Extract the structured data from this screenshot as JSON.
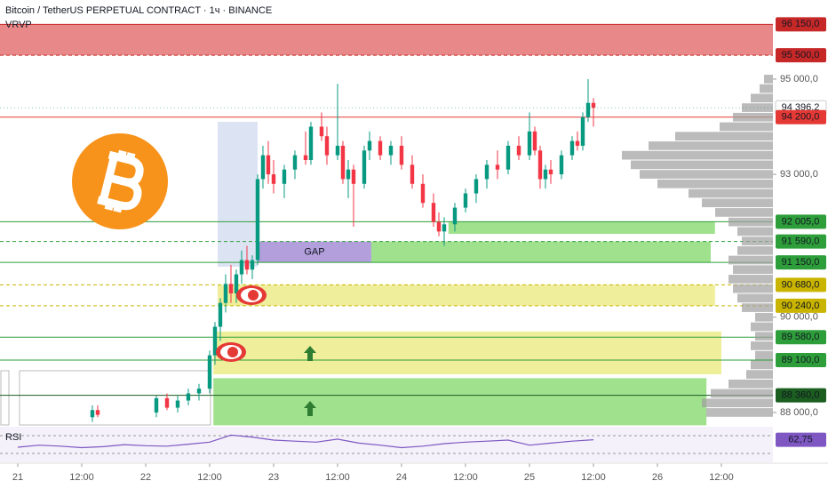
{
  "chart_data": {
    "type": "candlestick",
    "title": "Bitcoin / TetherUS PERPETUAL CONTRACT · 1ч · BINANCE",
    "indicator": "VRVP",
    "xlim": [
      -3.33,
      141.67
    ],
    "ylim": [
      87700,
      96660
    ],
    "xticks": [
      {
        "value": 0,
        "label": "21"
      },
      {
        "value": 12,
        "label": "12:00"
      },
      {
        "value": 24,
        "label": "22"
      },
      {
        "value": 36,
        "label": "12:00"
      },
      {
        "value": 48,
        "label": "23"
      },
      {
        "value": 60,
        "label": "12:00"
      },
      {
        "value": 72,
        "label": "24"
      },
      {
        "value": 84,
        "label": "12:00"
      },
      {
        "value": 96,
        "label": "25"
      },
      {
        "value": 108,
        "label": "12:00"
      },
      {
        "value": 120,
        "label": "26"
      },
      {
        "value": 132,
        "label": "12:00"
      }
    ],
    "yticks": [
      {
        "value": 95000,
        "label": "95 000,0"
      },
      {
        "value": 93000,
        "label": "93 000,0"
      },
      {
        "value": 90000,
        "label": "90 000,0"
      },
      {
        "value": 88000,
        "label": "88 000,0"
      }
    ],
    "up_color": "#089981",
    "down_color": "#f23645",
    "candles": {
      "x": [
        14,
        15,
        26,
        28,
        30,
        32,
        34,
        36,
        37,
        38,
        39,
        40,
        41,
        42,
        43,
        44,
        45,
        46,
        47,
        48,
        50,
        52,
        54,
        55,
        57,
        58,
        60,
        61,
        62,
        63,
        65,
        66,
        68,
        70,
        72,
        74,
        76,
        78,
        79,
        80,
        82,
        84,
        86,
        88,
        90,
        92,
        94,
        96,
        97,
        98,
        99,
        100,
        102,
        104,
        105,
        106,
        107,
        108
      ],
      "open": [
        87900,
        88050,
        88000,
        88300,
        88100,
        88250,
        88400,
        88500,
        89200,
        89800,
        90300,
        90700,
        90500,
        90900,
        91200,
        91000,
        91200,
        92900,
        93400,
        93000,
        92800,
        93100,
        93400,
        93300,
        94000,
        93800,
        93400,
        93600,
        92900,
        93100,
        92800,
        93500,
        93700,
        93400,
        93600,
        93200,
        92800,
        92400,
        92000,
        91800,
        91950,
        92300,
        92600,
        92900,
        93200,
        93100,
        93600,
        93400,
        93900,
        93500,
        92900,
        93100,
        93000,
        93400,
        93700,
        93600,
        94200,
        94500
      ],
      "high": [
        88150,
        88150,
        88350,
        88400,
        88350,
        88500,
        88600,
        89300,
        89900,
        90400,
        90900,
        91100,
        91000,
        91400,
        91500,
        91300,
        93000,
        93600,
        93700,
        93300,
        93200,
        93500,
        93900,
        94100,
        94300,
        94000,
        94900,
        93700,
        93300,
        93200,
        93600,
        93900,
        93800,
        93700,
        93800,
        93400,
        93000,
        92600,
        92200,
        92100,
        92400,
        92700,
        93000,
        93300,
        93500,
        93700,
        93800,
        94300,
        94000,
        93600,
        93200,
        93300,
        93500,
        93800,
        93900,
        94300,
        95000,
        94600
      ],
      "low": [
        87800,
        87900,
        87900,
        88050,
        88000,
        88150,
        88250,
        88400,
        89000,
        89500,
        90100,
        90300,
        90300,
        90700,
        90900,
        90800,
        91100,
        92700,
        92800,
        92600,
        92500,
        92900,
        93200,
        93200,
        93700,
        93200,
        93300,
        92800,
        92500,
        91900,
        92700,
        93300,
        93300,
        93200,
        93100,
        92700,
        92300,
        91900,
        91700,
        91500,
        91800,
        92200,
        92400,
        92700,
        92900,
        93000,
        93300,
        93300,
        93400,
        92700,
        92700,
        92800,
        92900,
        93300,
        93500,
        93500,
        94100,
        94000
      ],
      "close": [
        88050,
        87950,
        88300,
        88100,
        88250,
        88400,
        88500,
        89200,
        89800,
        90300,
        90700,
        90500,
        90900,
        91200,
        91000,
        91200,
        92900,
        93400,
        93000,
        92800,
        93100,
        93400,
        93300,
        94000,
        93800,
        93400,
        93600,
        92900,
        93100,
        92800,
        93500,
        93700,
        93400,
        93600,
        93200,
        92800,
        92400,
        92000,
        91800,
        91950,
        92300,
        92600,
        92900,
        93200,
        93100,
        93600,
        93400,
        93900,
        93500,
        92900,
        93100,
        93000,
        93400,
        93700,
        93600,
        94200,
        94500,
        94396.2
      ]
    },
    "last_price": {
      "value": 94396.2,
      "label": "94 396,2"
    },
    "price_levels": [
      {
        "value": 96150,
        "label": "96 150,0",
        "color": "#c62828",
        "style": "solid"
      },
      {
        "value": 95500,
        "label": "95 500,0",
        "color": "#c62828",
        "style": "dashed"
      },
      {
        "value": 94200,
        "label": "94 200,0",
        "color": "#e53935",
        "style": "solid"
      },
      {
        "value": 92005,
        "label": "92 005,0",
        "color": "#2e9e3a",
        "style": "solid"
      },
      {
        "value": 91590,
        "label": "91 590,0",
        "color": "#2e9e3a",
        "style": "dashed"
      },
      {
        "value": 91150,
        "label": "91 150,0",
        "color": "#2e9e3a",
        "style": "solid"
      },
      {
        "value": 90680,
        "label": "90 680,0",
        "color": "#c9b400",
        "style": "dashed"
      },
      {
        "value": 90240,
        "label": "90 240,0",
        "color": "#c9b400",
        "style": "dashed"
      },
      {
        "value": 89580,
        "label": "89 580,0",
        "color": "#2e9e3a",
        "style": "solid"
      },
      {
        "value": 89100,
        "label": "89 100,0",
        "color": "#2e9e3a",
        "style": "solid"
      },
      {
        "value": 88360,
        "label": "88 360,0",
        "color": "#1b5e20",
        "style": "solid"
      }
    ],
    "zones": [
      {
        "x0": 45,
        "x1": 66.33,
        "ymin": 91150,
        "ymax": 91590,
        "color": "#a48ed6",
        "label": "GAP"
      },
      {
        "x0": 66.33,
        "x1": 130,
        "ymin": 91150,
        "ymax": 91590,
        "color": "#8fdc7a"
      },
      {
        "x0": 80.8,
        "x1": 130.8,
        "ymin": 91750,
        "ymax": 92005,
        "color": "#8fdc7a"
      },
      {
        "x0": 37.5,
        "x1": 130.8,
        "ymin": 90240,
        "ymax": 90680,
        "color": "#ecec8a"
      },
      {
        "x0": 36.7,
        "x1": 132,
        "ymin": 88800,
        "ymax": 89700,
        "color": "#ecec8a"
      },
      {
        "x0": 36.7,
        "x1": 129.2,
        "ymin": 87730,
        "ymax": 88720,
        "color": "#8fdc7a"
      },
      {
        "x0": -3.33,
        "x1": 141.67,
        "ymin": 95500,
        "ymax": 96150,
        "color": "#e57373"
      }
    ],
    "volume_profile": {
      "prices": [
        88000,
        88200,
        88400,
        88600,
        88800,
        89000,
        89200,
        89400,
        89600,
        89800,
        90000,
        90200,
        90400,
        90600,
        90800,
        91000,
        91200,
        91400,
        91600,
        91800,
        92000,
        92200,
        92400,
        92600,
        92800,
        93000,
        93200,
        93400,
        93600,
        93800,
        94000,
        94200,
        94400,
        94600,
        94800,
        95000
      ],
      "volumes": [
        75,
        80,
        70,
        50,
        30,
        25,
        20,
        25,
        20,
        25,
        20,
        35,
        40,
        45,
        50,
        45,
        50,
        40,
        35,
        40,
        50,
        65,
        80,
        95,
        130,
        150,
        160,
        170,
        140,
        110,
        60,
        45,
        35,
        25,
        15,
        10
      ]
    },
    "rsi": {
      "label": "RSI",
      "ylim": [
        25,
        85
      ],
      "x": [
        0,
        4,
        8,
        12,
        16,
        20,
        24,
        28,
        32,
        36,
        40,
        44,
        48,
        52,
        56,
        60,
        64,
        68,
        72,
        76,
        80,
        84,
        88,
        92,
        96,
        100,
        104,
        108
      ],
      "values": [
        48,
        52,
        50,
        47,
        49,
        53,
        51,
        50,
        54,
        58,
        72,
        68,
        62,
        60,
        58,
        64,
        56,
        52,
        47,
        50,
        55,
        58,
        60,
        62,
        52,
        56,
        60,
        62.75
      ],
      "last": {
        "value": 62.75,
        "label": "62,75"
      }
    }
  }
}
